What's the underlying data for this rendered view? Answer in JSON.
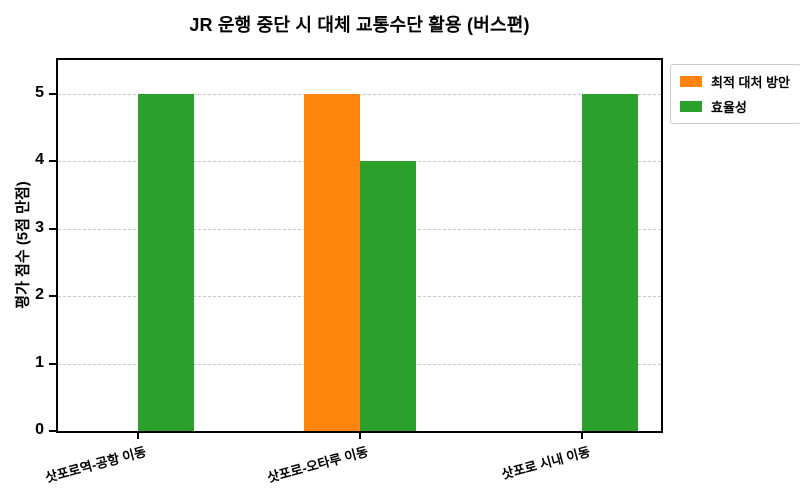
{
  "figure": {
    "title": "JR 운행 중단 시 대체 교통수단 활용 (버스편)"
  },
  "chart_data": {
    "type": "bar",
    "title": "JR 운행 중단 시 대체 교통수단 활용 (버스편)",
    "xlabel": "",
    "ylabel": "평가 점수 (5점 만점)",
    "categories": [
      "삿포로역-공항 이동",
      "삿포로-오타루 이동",
      "삿포로 시내 이동"
    ],
    "series": [
      {
        "name": "최적 대처 방안",
        "color": "#ff850e",
        "values": [
          0,
          5,
          0
        ]
      },
      {
        "name": "효율성",
        "color": "#2ca02c",
        "values": [
          5,
          4,
          5
        ]
      }
    ],
    "ylim": [
      0,
      5.5
    ],
    "yticks": [
      0,
      1,
      2,
      3,
      4,
      5
    ],
    "grid": "horizontal-dashed",
    "grid_color": "#c8c8c8",
    "spine_color": "#000000",
    "background_color": "#ffffff",
    "legend_position": "upper-right-outside"
  }
}
